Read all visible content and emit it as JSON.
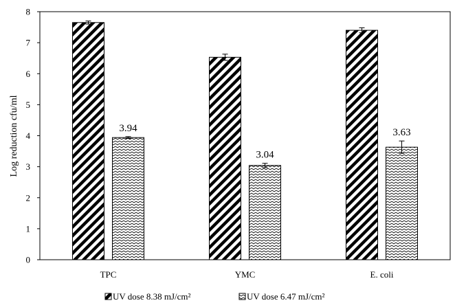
{
  "chart_data": {
    "type": "bar",
    "title": "",
    "xlabel": "",
    "ylabel": "Log reduction cfu/ml",
    "ylim": [
      0,
      8
    ],
    "yticks": [
      0,
      1,
      2,
      3,
      4,
      5,
      6,
      7,
      8
    ],
    "categories": [
      "TPC",
      "YMC",
      "E. coli"
    ],
    "grid": false,
    "legend_position": "bottom",
    "series": [
      {
        "name": "UV dose 8.38 mJ/cm²",
        "pattern": "diagonal-hatch",
        "values": [
          7.65,
          6.53,
          7.4
        ],
        "errors": [
          0.05,
          0.1,
          0.08
        ],
        "data_labels": [
          "",
          "",
          ""
        ]
      },
      {
        "name": "UV dose 6.47 mJ/cm²",
        "pattern": "dotted-wave",
        "values": [
          3.94,
          3.04,
          3.63
        ],
        "errors": [
          0.03,
          0.07,
          0.2
        ],
        "data_labels": [
          "3.94",
          "3.04",
          "3.63"
        ]
      }
    ]
  }
}
